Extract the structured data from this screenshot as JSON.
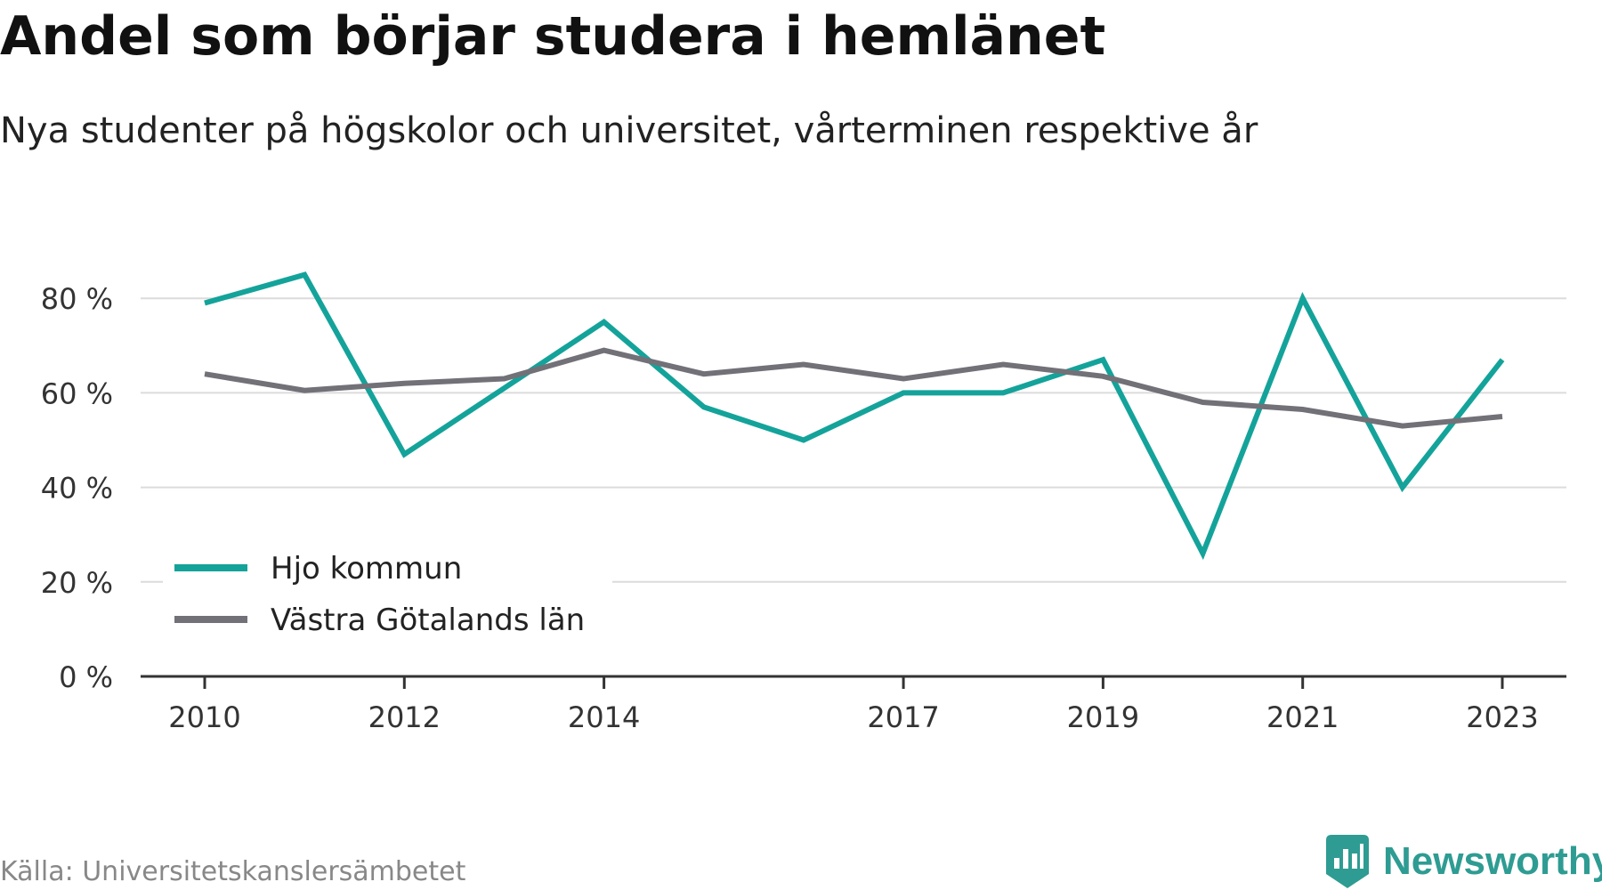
{
  "title": "Andel som börjar studera i hemlänet",
  "subtitle": "Nya studenter på högskolor och universitet, vårterminen respektive år",
  "source": "Källa: Universitetskanslersämbetet",
  "brand": {
    "name": "Newsworthy",
    "color": "#2e9c92",
    "icon": "newsworthy-logo-icon"
  },
  "chart_data": {
    "type": "line",
    "title": "Andel som börjar studera i hemlänet",
    "subtitle": "Nya studenter på högskolor och universitet, vårterminen respektive år",
    "x": [
      2010,
      2011,
      2012,
      2013,
      2014,
      2015,
      2016,
      2017,
      2018,
      2019,
      2020,
      2021,
      2022,
      2023
    ],
    "x_ticks": [
      "2010",
      "2012",
      "2014",
      "2017",
      "2019",
      "2021",
      "2023"
    ],
    "y_ticks": [
      "0 %",
      "20 %",
      "40 %",
      "60 %",
      "80 %"
    ],
    "y_tick_values": [
      0,
      20,
      40,
      60,
      80
    ],
    "ylim": [
      0,
      85
    ],
    "grid": true,
    "legend_position": "bottom-left",
    "series": [
      {
        "name": "Hjo kommun",
        "color": "#14a39a",
        "values": [
          79,
          85,
          47,
          61,
          75,
          57,
          50,
          60,
          60,
          67,
          26,
          80,
          40,
          67
        ]
      },
      {
        "name": "Västra Götalands län",
        "color": "#727178",
        "values": [
          64,
          60.5,
          62,
          63,
          69,
          64,
          66,
          63,
          66,
          63.5,
          58,
          56.5,
          53,
          55
        ]
      }
    ]
  }
}
